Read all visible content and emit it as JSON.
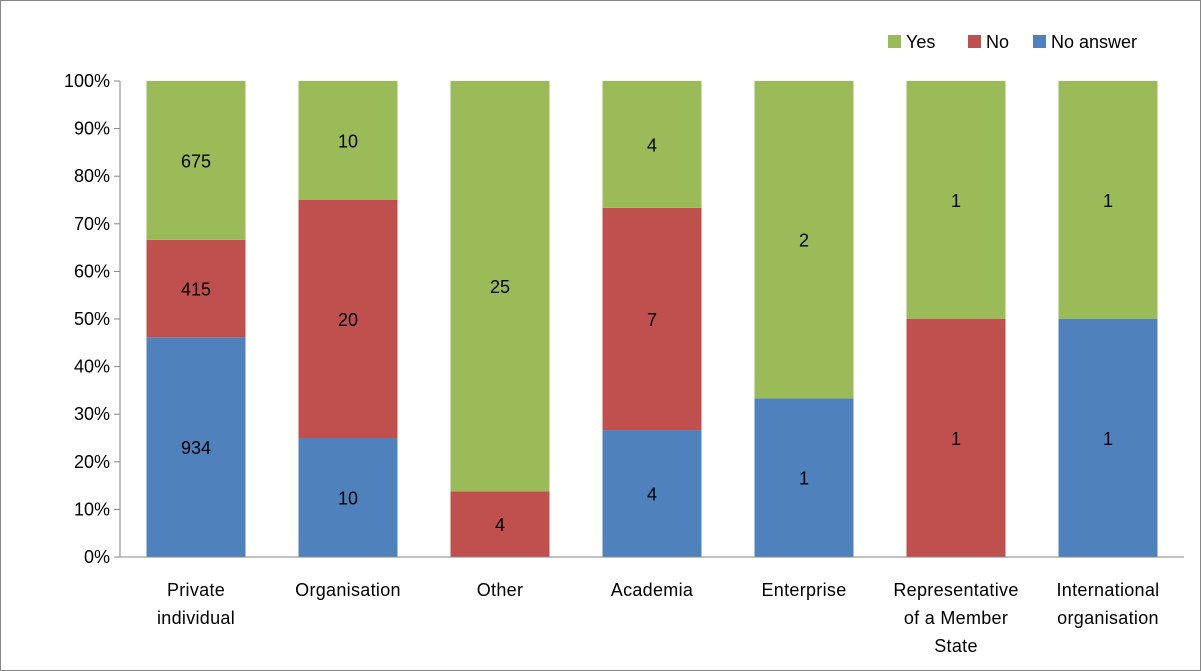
{
  "chart_data": {
    "type": "bar",
    "stacked": "percent",
    "categories": [
      [
        "Private",
        "individual"
      ],
      [
        "Organisation"
      ],
      [
        "Other"
      ],
      [
        "Academia"
      ],
      [
        "Enterprise"
      ],
      [
        "Representative",
        "of a Member",
        "State"
      ],
      [
        "International",
        "organisation"
      ]
    ],
    "series": [
      {
        "name": "No answer",
        "color": "#4f81bd",
        "values": [
          934,
          10,
          0,
          4,
          1,
          0,
          1
        ]
      },
      {
        "name": "No",
        "color": "#c0504d",
        "values": [
          415,
          20,
          4,
          7,
          0,
          1,
          0
        ]
      },
      {
        "name": "Yes",
        "color": "#9bbb59",
        "values": [
          675,
          10,
          25,
          4,
          2,
          1,
          1
        ]
      }
    ],
    "legend_order": [
      "Yes",
      "No",
      "No answer"
    ],
    "legend_position": "top-right",
    "ylim": [
      0,
      100
    ],
    "y_ticks": [
      "0%",
      "10%",
      "20%",
      "30%",
      "40%",
      "50%",
      "60%",
      "70%",
      "80%",
      "90%",
      "100%"
    ],
    "grid": false
  }
}
